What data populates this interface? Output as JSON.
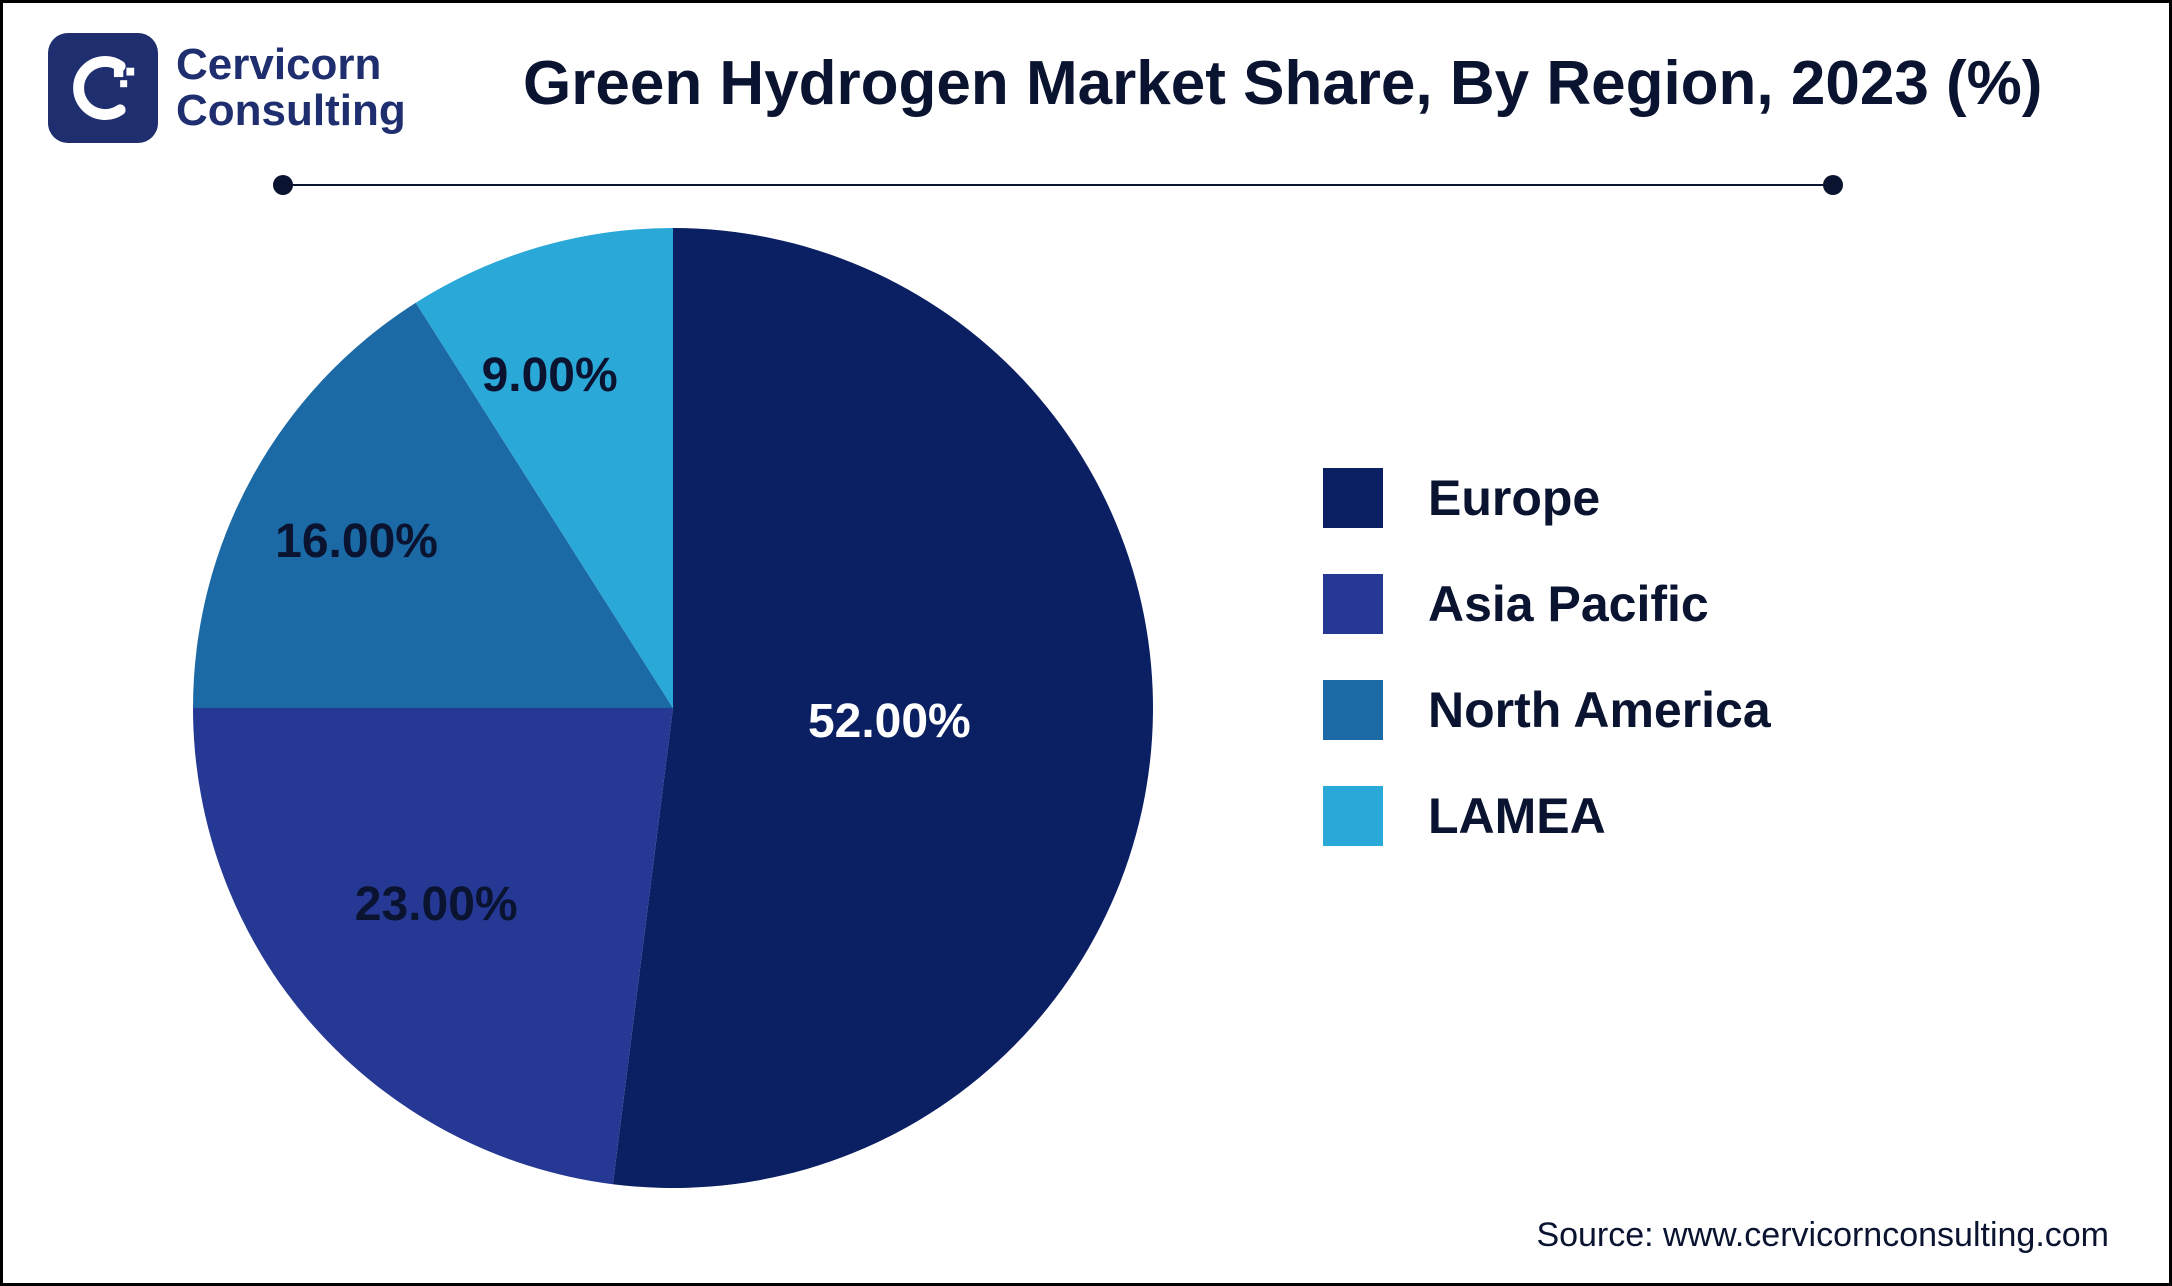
{
  "brand": {
    "line1": "Cervicorn",
    "line2": "Consulting",
    "mark_bg": "#1e2e6e"
  },
  "chart": {
    "type": "pie",
    "title": "Green Hydrogen Market Share, By Region, 2023 (%)",
    "title_fontsize": 62,
    "title_color": "#0a1330",
    "background_color": "#ffffff",
    "border_color": "#000000",
    "divider_color": "#0a1330",
    "pie_radius": 480,
    "slices": [
      {
        "label": "Europe",
        "value": 52.0,
        "color": "#0b1f63",
        "pct_text": "52.00%"
      },
      {
        "label": "Asia Pacific",
        "value": 23.0,
        "color": "#253893",
        "pct_text": "23.00%"
      },
      {
        "label": "North America",
        "value": 16.0,
        "color": "#1b6aa5",
        "pct_text": "16.00%"
      },
      {
        "label": "LAMEA",
        "value": 9.0,
        "color": "#2aa8d8",
        "pct_text": "9.00%"
      }
    ],
    "label_fontsize": 48,
    "label_color": "#0a1330",
    "legend": {
      "fontsize": 50,
      "swatch_size": 60,
      "text_color": "#0a1330"
    }
  },
  "source": "Source: www.cervicornconsulting.com"
}
